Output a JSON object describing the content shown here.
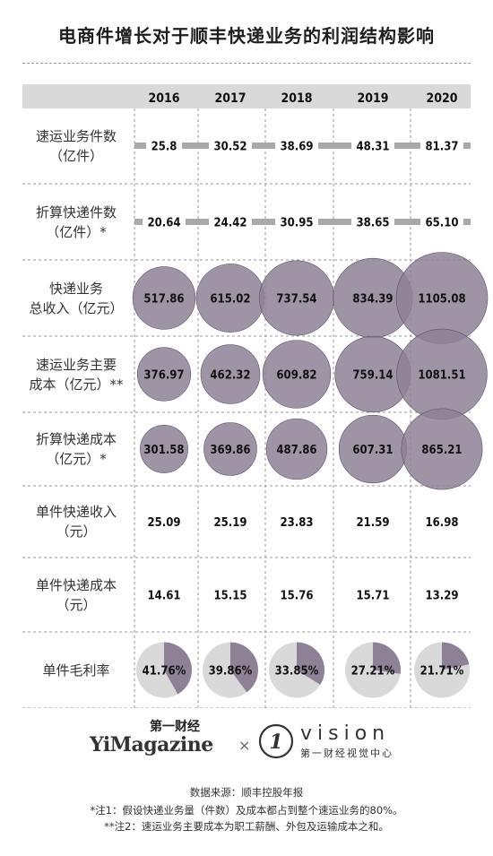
{
  "title": "电商件增长对于顺丰快递业务的利润结构影响",
  "colors": {
    "header_bg": "#d9d9d9",
    "bubble": "#8e8196",
    "bubble_stroke": "#5e5366",
    "bar": "#a9a9a9",
    "pie_bg": "#d9d9d9",
    "pie_fill": "#8e8196"
  },
  "chart_data": {
    "type": "table",
    "years": [
      "2016",
      "2017",
      "2018",
      "2019",
      "2020"
    ],
    "rows": [
      {
        "label": "速运业务件数",
        "unit": "（亿件）",
        "style": "bar",
        "values": [
          25.8,
          30.52,
          38.69,
          48.31,
          81.37
        ],
        "display": [
          "25.8",
          "30.52",
          "38.69",
          "48.31",
          "81.37"
        ]
      },
      {
        "label": "折算快递件数",
        "unit": "（亿件）*",
        "style": "bar",
        "values": [
          20.64,
          24.42,
          30.95,
          38.65,
          65.1
        ],
        "display": [
          "20.64",
          "24.42",
          "30.95",
          "38.65",
          "65.10"
        ]
      },
      {
        "label": "快递业务",
        "unit": "总收入（亿元）",
        "style": "bubble",
        "values": [
          517.86,
          615.02,
          737.54,
          834.39,
          1105.08
        ],
        "display": [
          "517.86",
          "615.02",
          "737.54",
          "834.39",
          "1105.08"
        ]
      },
      {
        "label": "速运业务主要",
        "unit": "成本（亿元）**",
        "style": "bubble",
        "values": [
          376.97,
          462.32,
          609.82,
          759.14,
          1081.51
        ],
        "display": [
          "376.97",
          "462.32",
          "609.82",
          "759.14",
          "1081.51"
        ]
      },
      {
        "label": "折算快递成本",
        "unit": "（亿元）*",
        "style": "bubble",
        "values": [
          301.58,
          369.86,
          487.86,
          607.31,
          865.21
        ],
        "display": [
          "301.58",
          "369.86",
          "487.86",
          "607.31",
          "865.21"
        ]
      },
      {
        "label": "单件快递收入",
        "unit": "（元）",
        "style": "text",
        "values": [
          25.09,
          25.19,
          23.83,
          21.59,
          16.98
        ],
        "display": [
          "25.09",
          "25.19",
          "23.83",
          "21.59",
          "16.98"
        ]
      },
      {
        "label": "单件快递成本",
        "unit": "（元）",
        "style": "text",
        "values": [
          14.61,
          15.15,
          15.76,
          15.71,
          13.29
        ],
        "display": [
          "14.61",
          "15.15",
          "15.76",
          "15.71",
          "13.29"
        ]
      },
      {
        "label": "单件毛利率",
        "unit": "",
        "style": "pie",
        "values": [
          41.76,
          39.86,
          33.85,
          27.21,
          21.71
        ],
        "display": [
          "41.76%",
          "39.86%",
          "33.85%",
          "27.21%",
          "21.71%"
        ]
      }
    ]
  },
  "logos": {
    "yi_top": "第一财经",
    "yi_main": "YiMagazine",
    "times": "×",
    "vision_mark": "1",
    "vision_word": "vision",
    "vision_sub": "第一财经视觉中心"
  },
  "source": "数据来源：顺丰控股年报",
  "notes": [
    "*注1：假设快递业务量（件数）及成本都占到整个速运业务的80%。",
    "**注2：速运业务主要成本为职工薪酬、外包及运输成本之和。"
  ]
}
